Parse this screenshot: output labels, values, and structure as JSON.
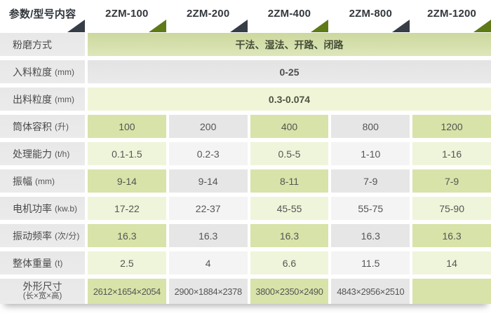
{
  "table": {
    "header": {
      "param_label": "参数/型号内容",
      "models": [
        "2ZM-100",
        "2ZM-200",
        "2ZM-400",
        "2ZM-800",
        "2ZM-1200"
      ],
      "triangle_colors": [
        "dark",
        "green",
        "dark",
        "green",
        "dark",
        "green"
      ]
    },
    "rows": [
      {
        "label": "粉磨方式",
        "unit": "",
        "span": "干法、湿法、开路、闭路"
      },
      {
        "label": "入料粒度",
        "unit": "(mm)",
        "span": "0-25"
      },
      {
        "label": "出料粒度",
        "unit": "(mm)",
        "span": "0.3-0.074"
      },
      {
        "label": "筒体容积",
        "unit": "(升)",
        "values": [
          "100",
          "200",
          "400",
          "800",
          "1200"
        ]
      },
      {
        "label": "处理能力",
        "unit": "(t/h)",
        "values": [
          "0.1-1.5",
          "0.2-3",
          "0.5-5",
          "1-10",
          "1-16"
        ]
      },
      {
        "label": "振幅",
        "unit": "(mm)",
        "values": [
          "9-14",
          "9-14",
          "8-11",
          "7-9",
          "7-9"
        ]
      },
      {
        "label": "电机功率",
        "unit": "(kw.b)",
        "values": [
          "17-22",
          "22-37",
          "45-55",
          "55-75",
          "75-90"
        ]
      },
      {
        "label": "振动频率",
        "unit": "(次/分)",
        "values": [
          "16.3",
          "16.3",
          "16.3",
          "16.3",
          "16.3"
        ]
      },
      {
        "label": "整体重量",
        "unit": "(t)",
        "values": [
          "2.5",
          "4",
          "6.6",
          "11.5",
          "14"
        ]
      },
      {
        "label": "外形尺寸",
        "unit": "(长×宽×高)",
        "values": [
          "2612×1654×2054",
          "2900×1884×2378",
          "3800×2350×2490",
          "4843×2956×2510",
          ""
        ]
      }
    ]
  },
  "colors": {
    "green_cell_dark": "#d7e3a8",
    "green_cell_light": "#eff5da",
    "gray_cell_dark": "#e6e6e6",
    "gray_cell_light": "#f4f4f4",
    "label_bg": "#ebebeb",
    "band_green_top": "#ccd89e",
    "band_green_bottom": "#dde6ba",
    "band_gray": "#e6e6e6",
    "band_pale_green": "#f0f5d8",
    "triangle_dark": "#363d47",
    "triangle_green": "#5e7a17",
    "header_text": "#33383d",
    "cell_text": "#555555",
    "label_text": "#4a4a4a"
  }
}
